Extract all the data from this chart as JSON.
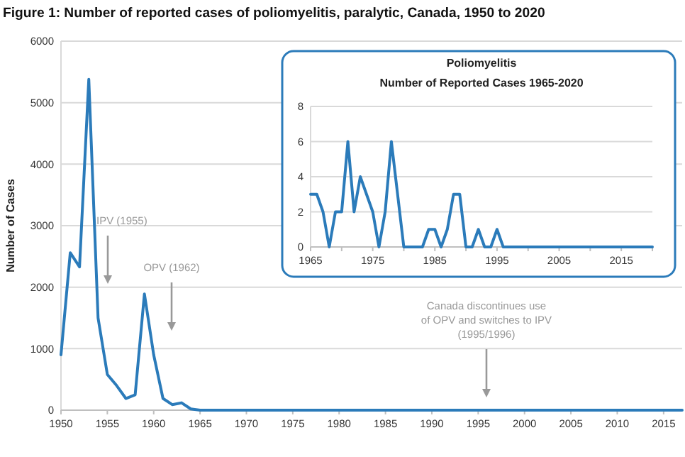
{
  "chart_data": [
    {
      "type": "line",
      "title": "Figure 1: Number of reported cases of poliomyelitis, paralytic, Canada, 1950 to 2020",
      "ylabel": "Number of Cases",
      "color": "#2b7bba",
      "x": [
        1950,
        1951,
        1952,
        1953,
        1954,
        1955,
        1956,
        1957,
        1958,
        1959,
        1960,
        1961,
        1962,
        1963,
        1964,
        1965,
        1966,
        1967,
        1968,
        1969,
        1970,
        1971,
        1972,
        1973,
        1974,
        1975,
        1976,
        1977,
        1978,
        1979,
        1980,
        1981,
        1982,
        1983,
        1984,
        1985,
        1986,
        1987,
        1988,
        1989,
        1990,
        1991,
        1992,
        1993,
        1994,
        1995,
        1996,
        1997,
        1998,
        1999,
        2000,
        2001,
        2002,
        2003,
        2004,
        2005,
        2006,
        2007,
        2008,
        2009,
        2010,
        2011,
        2012,
        2013,
        2014,
        2015,
        2016,
        2017
      ],
      "values": [
        900,
        2560,
        2330,
        5380,
        1500,
        580,
        400,
        190,
        250,
        1890,
        900,
        190,
        90,
        120,
        20,
        0,
        0,
        0,
        0,
        0,
        0,
        0,
        0,
        0,
        0,
        0,
        0,
        0,
        0,
        0,
        0,
        0,
        0,
        0,
        0,
        0,
        0,
        0,
        0,
        0,
        0,
        0,
        0,
        0,
        0,
        0,
        0,
        0,
        0,
        0,
        0,
        0,
        0,
        0,
        0,
        0,
        0,
        0,
        0,
        0,
        0,
        0,
        0,
        0,
        0,
        0,
        0,
        0
      ],
      "xlim": [
        1950,
        2017
      ],
      "ylim": [
        0,
        6000
      ],
      "xticks": [
        1950,
        1955,
        1960,
        1965,
        1970,
        1975,
        1980,
        1985,
        1990,
        1995,
        2000,
        2005,
        2010,
        2015
      ],
      "yticks": [
        0,
        1000,
        2000,
        3000,
        4000,
        5000,
        6000
      ],
      "grid": "y",
      "annotations": [
        "IPV (1955)",
        "OPV (1962)",
        "Canada discontinues use\nof OPV and switches to IPV\n(1995/1996)"
      ]
    },
    {
      "type": "line",
      "title": "Poliomyelitis",
      "subtitle": "Number of Reported Cases 1965-2020",
      "color": "#2b7bba",
      "x": [
        1965,
        1966,
        1967,
        1968,
        1969,
        1970,
        1971,
        1972,
        1973,
        1974,
        1975,
        1976,
        1977,
        1978,
        1979,
        1980,
        1981,
        1982,
        1983,
        1984,
        1985,
        1986,
        1987,
        1988,
        1989,
        1990,
        1991,
        1992,
        1993,
        1994,
        1995,
        1996,
        1997,
        1998,
        1999,
        2000,
        2001,
        2002,
        2003,
        2004,
        2005,
        2006,
        2007,
        2008,
        2009,
        2010,
        2011,
        2012,
        2013,
        2014,
        2015,
        2016,
        2017,
        2018,
        2019,
        2020
      ],
      "values": [
        3,
        3,
        2,
        0,
        2,
        2,
        6,
        2,
        4,
        3,
        2,
        0,
        2,
        6,
        3,
        0,
        0,
        0,
        0,
        1,
        1,
        0,
        1,
        3,
        3,
        0,
        0,
        1,
        0,
        0,
        1,
        0,
        0,
        0,
        0,
        0,
        0,
        0,
        0,
        0,
        0,
        0,
        0,
        0,
        0,
        0,
        0,
        0,
        0,
        0,
        0,
        0,
        0,
        0,
        0,
        0
      ],
      "xlim": [
        1965,
        2020
      ],
      "ylim": [
        0,
        8
      ],
      "xticks": [
        1965,
        {
          "value": 1970,
          "label": null
        },
        1975,
        {
          "value": 1980,
          "label": null
        },
        1985,
        {
          "value": 1990,
          "label": null
        },
        1995,
        {
          "value": 2000,
          "label": null
        },
        2005,
        {
          "value": 2010,
          "label": null
        },
        2015,
        {
          "value": 2020,
          "label": null
        }
      ],
      "yticks": [
        0,
        2,
        4,
        6,
        8
      ],
      "grid": "y"
    }
  ]
}
